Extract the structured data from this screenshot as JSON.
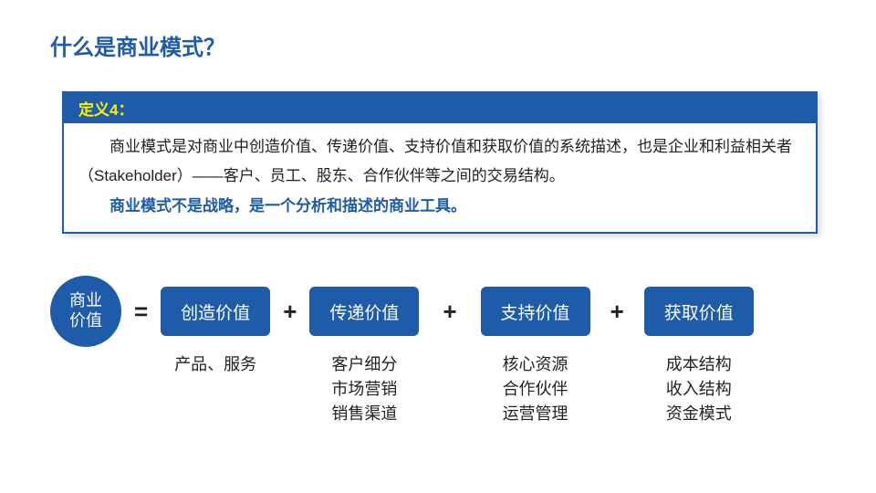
{
  "title": "什么是商业模式？",
  "definition": {
    "header": "定义4：",
    "body_line1": "商业模式是对商业中创造价值、传递价值、支持价值和获取价值的系统描述，也是企业和利益相关者（Stakeholder）——客户、员工、股东、合作伙伴等之间的交易结构。",
    "emphasis": "商业模式不是战略，是一个分析和描述的商业工具。"
  },
  "equation": {
    "circle_l1": "商业",
    "circle_l2": "价值",
    "equals": "=",
    "plus": "+",
    "boxes": [
      {
        "label": "创造价值",
        "sub": [
          "产品、服务"
        ]
      },
      {
        "label": "传递价值",
        "sub": [
          "客户细分",
          "市场营销",
          "销售渠道"
        ]
      },
      {
        "label": "支持价值",
        "sub": [
          "核心资源",
          "合作伙伴",
          "运营管理"
        ]
      },
      {
        "label": "获取价值",
        "sub": [
          "成本结构",
          "收入结构",
          "资金模式"
        ]
      }
    ]
  },
  "colors": {
    "brand_blue": "#1e5ba8",
    "header_text": "#fff200",
    "body_text": "#222222",
    "background": "#ffffff"
  }
}
